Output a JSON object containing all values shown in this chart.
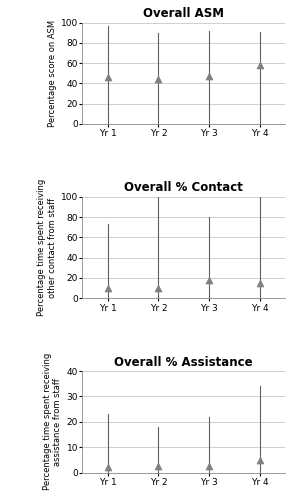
{
  "charts": [
    {
      "title": "Overall ASM",
      "ylabel": "Percentage score on ASM",
      "ylim": [
        0,
        100
      ],
      "yticks": [
        0,
        20,
        40,
        60,
        80,
        100
      ],
      "categories": [
        "Yr 1",
        "Yr 2",
        "Yr 3",
        "Yr 4"
      ],
      "means": [
        46,
        44,
        47,
        58
      ],
      "lows": [
        0,
        0,
        0,
        0
      ],
      "highs": [
        97,
        90,
        92,
        91
      ]
    },
    {
      "title": "Overall % Contact",
      "ylabel": "Percentage time spent receiving\nother contact from staff",
      "ylim": [
        0,
        100
      ],
      "yticks": [
        0,
        20,
        40,
        60,
        80,
        100
      ],
      "categories": [
        "Yr 1",
        "Yr 2",
        "Yr 3",
        "Yr 4"
      ],
      "means": [
        10,
        10,
        18,
        15
      ],
      "lows": [
        0,
        0,
        0,
        0
      ],
      "highs": [
        73,
        100,
        80,
        100
      ]
    },
    {
      "title": "Overall % Assistance",
      "ylabel": "Percentage time spent receiving\nassistance from staff",
      "ylim": [
        0,
        40
      ],
      "yticks": [
        0,
        10,
        20,
        30,
        40
      ],
      "categories": [
        "Yr 1",
        "Yr 2",
        "Yr 3",
        "Yr 4"
      ],
      "means": [
        2,
        2.5,
        2.5,
        5
      ],
      "lows": [
        0,
        0,
        0,
        0
      ],
      "highs": [
        23,
        18,
        22,
        34
      ]
    }
  ],
  "marker_color": "#808080",
  "line_color": "#606060",
  "background_color": "#ffffff",
  "grid_color": "#bbbbbb",
  "title_fontsize": 8.5,
  "label_fontsize": 6.0,
  "tick_fontsize": 6.5
}
